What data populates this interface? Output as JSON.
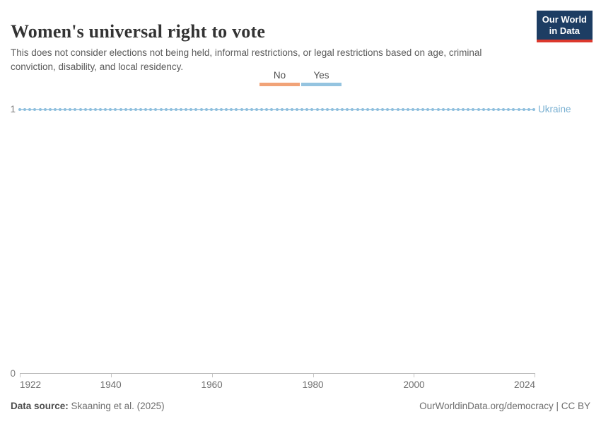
{
  "header": {
    "title": "Women's universal right to vote",
    "subtitle": "This does not consider elections not being held, informal restrictions, or legal restrictions based on age, criminal conviction, disability, and local residency.",
    "logo": {
      "line1": "Our World",
      "line2": "in Data",
      "bg_color": "#1d3d63",
      "accent_color": "#dc382d"
    }
  },
  "legend": {
    "items": [
      {
        "label": "No",
        "color": "#f1a378"
      },
      {
        "label": "Yes",
        "color": "#95c4e0"
      }
    ]
  },
  "chart_data": {
    "type": "line",
    "title": "Women's universal right to vote",
    "x_start": 1922,
    "x_end": 2024,
    "x_step": 1,
    "xticks": [
      1922,
      1940,
      1960,
      1980,
      2000,
      2024
    ],
    "ylim": [
      0,
      1
    ],
    "yticks": [
      0,
      1
    ],
    "grid": false,
    "legend_position": "top-center",
    "value_meaning": {
      "0": "No",
      "1": "Yes"
    },
    "series": [
      {
        "name": "Ukraine",
        "constant_value": 1,
        "note": "value is 1 (Yes) for every year from 1922 through 2024, one data point per year",
        "line_color": "#abcee6",
        "dot_color": "#8fc0de",
        "label_color": "#79b0d2"
      }
    ]
  },
  "axes": {
    "y_top_label": "1",
    "y_bottom_label": "0"
  },
  "footer": {
    "source_prefix": "Data source:",
    "source_text": " Skaaning et al. (2025)",
    "credit": "OurWorldinData.org/democracy | CC BY"
  }
}
